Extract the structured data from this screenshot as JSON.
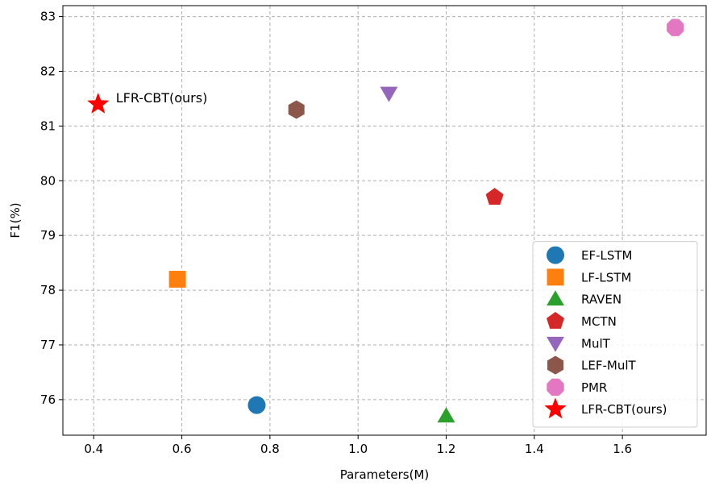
{
  "chart_data": {
    "type": "scatter",
    "xlabel": "Parameters(M)",
    "ylabel": "F1(%)",
    "xlim": [
      0.33,
      1.79
    ],
    "ylim": [
      75.35,
      83.2
    ],
    "xticks": [
      0.4,
      0.6,
      0.8,
      1.0,
      1.2,
      1.4,
      1.6
    ],
    "xtick_labels": [
      "0.4",
      "0.6",
      "0.8",
      "1.0",
      "1.2",
      "1.4",
      "1.6"
    ],
    "yticks": [
      76,
      77,
      78,
      79,
      80,
      81,
      82,
      83
    ],
    "ytick_labels": [
      "76",
      "77",
      "78",
      "79",
      "80",
      "81",
      "82",
      "83"
    ],
    "grid": true,
    "legend_position": "lower-right",
    "series": [
      {
        "name": "EF-LSTM",
        "x": 0.77,
        "y": 75.9,
        "marker": "circle",
        "color": "#1f77b4"
      },
      {
        "name": "LF-LSTM",
        "x": 0.59,
        "y": 78.2,
        "marker": "square",
        "color": "#ff7f0e"
      },
      {
        "name": "RAVEN",
        "x": 1.2,
        "y": 75.7,
        "marker": "triangle-up",
        "color": "#2ca02c"
      },
      {
        "name": "MCTN",
        "x": 1.31,
        "y": 79.7,
        "marker": "pentagon",
        "color": "#d62728"
      },
      {
        "name": "MulT",
        "x": 1.07,
        "y": 81.6,
        "marker": "triangle-down",
        "color": "#9467bd"
      },
      {
        "name": "LEF-MulT",
        "x": 0.86,
        "y": 81.3,
        "marker": "hexagon",
        "color": "#8c564b"
      },
      {
        "name": "PMR",
        "x": 1.72,
        "y": 82.8,
        "marker": "octagon",
        "color": "#e377c2"
      },
      {
        "name": "LFR-CBT(ours)",
        "x": 0.41,
        "y": 81.4,
        "marker": "star",
        "color": "#ff0000"
      }
    ],
    "annotations": [
      {
        "text": "LFR-CBT(ours)",
        "x": 0.41,
        "y": 81.4
      }
    ]
  }
}
